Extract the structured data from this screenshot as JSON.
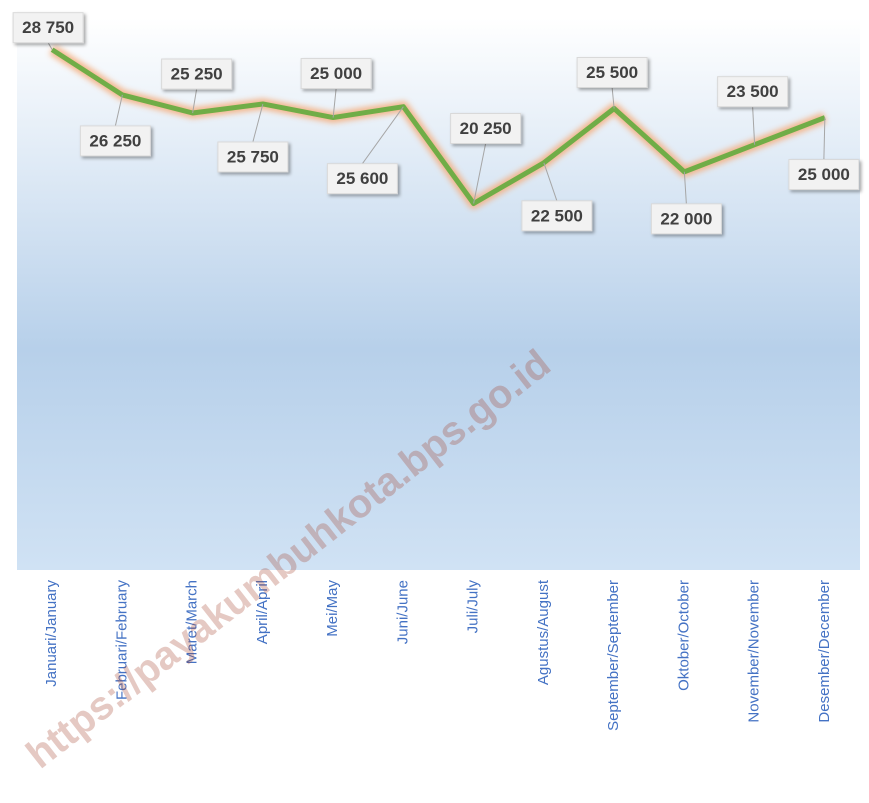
{
  "chart_data": {
    "type": "line",
    "categories": [
      "Januari/January",
      "Februari/February",
      "Maret/March",
      "April/April",
      "Mei/May",
      "Juni/June",
      "Juli/July",
      "Agustus/August",
      "September/September",
      "Oktober/October",
      "November/November",
      "Desember/December"
    ],
    "series": [
      {
        "name": null,
        "color": "#70ad47",
        "values": [
          28750,
          26250,
          25250,
          25750,
          25000,
          25600,
          20250,
          22500,
          25500,
          22000,
          23500,
          25000
        ],
        "value_labels": [
          "28 750",
          "26 250",
          "25 250",
          "25 750",
          "25 000",
          "25 600",
          "20 250",
          "22 500",
          "25 500",
          "22 000",
          "23 500",
          "25 000"
        ]
      }
    ],
    "ylim": [
      0,
      30500
    ],
    "watermark": "https://payakumbuhkota.bps.go.id"
  }
}
